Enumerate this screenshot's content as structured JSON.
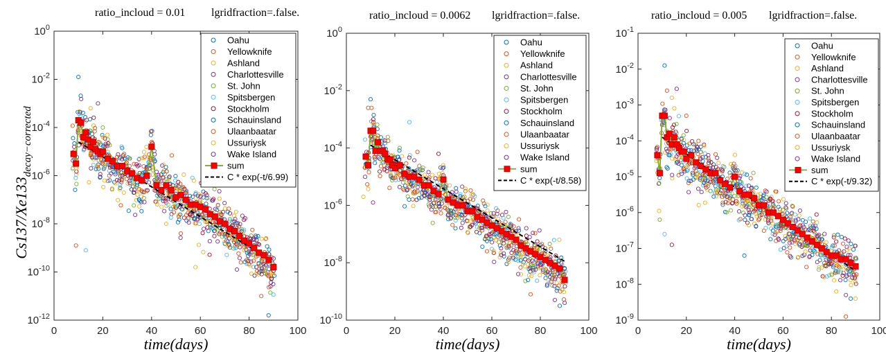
{
  "chart_data": [
    {
      "type": "scatter",
      "title_left": "ratio_incloud = 0.01",
      "title_right": "lgridfraction=.false.",
      "xlabel": "time(days)",
      "ylabel": "Cs137/Xe133",
      "ylabel_sub": "decay−corrected",
      "xlim": [
        0,
        100
      ],
      "xticks": [
        0,
        20,
        40,
        60,
        80,
        100
      ],
      "yscale": "log",
      "ylim_exp": [
        -12,
        0
      ],
      "yticks_exp": [
        -12,
        -10,
        -8,
        -6,
        -4,
        -2,
        0
      ],
      "fit_tau": 6.99,
      "fit_label": "C * exp(-t/6.99)",
      "sum": {
        "x": [
          8,
          9,
          10,
          11,
          12,
          13,
          14,
          15,
          16,
          17,
          18,
          19,
          20,
          22,
          24,
          26,
          28,
          30,
          32,
          34,
          36,
          38,
          40,
          42,
          44,
          46,
          48,
          50,
          52,
          54,
          56,
          58,
          60,
          62,
          64,
          66,
          68,
          70,
          72,
          74,
          76,
          78,
          80,
          82,
          84,
          86,
          88,
          90
        ],
        "logy": [
          -5.1,
          -5.5,
          -3.7,
          -3.8,
          -4.4,
          -4.2,
          -4.5,
          -4.8,
          -4.6,
          -4.9,
          -5.0,
          -5.1,
          -5.0,
          -5.3,
          -5.4,
          -5.6,
          -5.6,
          -5.8,
          -5.9,
          -6.1,
          -6.2,
          -6.0,
          -4.8,
          -6.4,
          -6.6,
          -6.4,
          -6.6,
          -6.9,
          -6.8,
          -7.0,
          -7.2,
          -7.2,
          -7.3,
          -7.4,
          -7.6,
          -7.7,
          -7.9,
          -8.0,
          -8.2,
          -8.3,
          -8.5,
          -8.7,
          -8.8,
          -9.0,
          -9.2,
          -9.3,
          -9.5,
          -9.8
        ]
      },
      "fit_start_logy": -4.6,
      "scatter_spread": 0.9,
      "outliers": [
        [
          10,
          -1.9
        ],
        [
          9,
          -8.9
        ],
        [
          15,
          -3.2
        ],
        [
          18,
          -3.0
        ],
        [
          20,
          -4.0
        ],
        [
          13,
          -9.1
        ],
        [
          28,
          -6.0
        ],
        [
          35,
          -7.0
        ],
        [
          52,
          -8.4
        ],
        [
          58,
          -9.8
        ],
        [
          75,
          -9.9
        ],
        [
          88,
          -11.8
        ],
        [
          85,
          -11.0
        ],
        [
          46,
          -8.0
        ]
      ]
    },
    {
      "type": "scatter",
      "title_left": "ratio_incloud = 0.0062",
      "title_right": "lgridfraction=.false.",
      "xlabel": "time(days)",
      "xlim": [
        0,
        100
      ],
      "xticks": [
        0,
        20,
        40,
        60,
        80,
        100
      ],
      "yscale": "log",
      "ylim_exp": [
        -10,
        0
      ],
      "yticks_exp": [
        -10,
        -8,
        -6,
        -4,
        -2,
        0
      ],
      "fit_tau": 8.58,
      "fit_label": "C * exp(-t/8.58)",
      "sum": {
        "x": [
          8,
          9,
          10,
          11,
          12,
          13,
          14,
          15,
          16,
          17,
          18,
          19,
          20,
          22,
          24,
          26,
          28,
          30,
          32,
          34,
          36,
          38,
          40,
          42,
          44,
          46,
          48,
          50,
          52,
          54,
          56,
          58,
          60,
          62,
          64,
          66,
          68,
          70,
          72,
          74,
          76,
          78,
          80,
          82,
          84,
          86,
          88,
          90
        ],
        "logy": [
          -4.3,
          -4.6,
          -3.4,
          -3.4,
          -4.1,
          -3.8,
          -4.1,
          -4.1,
          -4.2,
          -4.4,
          -4.4,
          -4.6,
          -4.7,
          -4.6,
          -4.9,
          -5.0,
          -5.0,
          -5.1,
          -5.3,
          -5.3,
          -5.5,
          -5.6,
          -5.1,
          -5.8,
          -5.9,
          -6.0,
          -6.0,
          -6.2,
          -6.2,
          -6.4,
          -6.5,
          -6.6,
          -6.7,
          -6.8,
          -6.9,
          -7.0,
          -7.1,
          -7.2,
          -7.4,
          -7.5,
          -7.6,
          -7.7,
          -7.8,
          -7.9,
          -8.0,
          -8.1,
          -8.2,
          -8.6
        ]
      },
      "fit_start_logy": -3.9,
      "scatter_spread": 0.7,
      "outliers": [
        [
          10,
          -2.3
        ],
        [
          9,
          -2.6
        ],
        [
          7,
          -5.7
        ],
        [
          11,
          -5.9
        ],
        [
          22,
          -4.0
        ],
        [
          26,
          -3.1
        ],
        [
          38,
          -4.2
        ],
        [
          45,
          -6.8
        ],
        [
          58,
          -7.6
        ],
        [
          72,
          -8.4
        ],
        [
          86,
          -9.3
        ],
        [
          88,
          -9.5
        ],
        [
          76,
          -9.1
        ]
      ]
    },
    {
      "type": "scatter",
      "title_left": "ratio_incloud = 0.005",
      "title_right": "lgridfraction=.false.",
      "xlabel": "time(days)",
      "xlim": [
        0,
        100
      ],
      "xticks": [
        0,
        20,
        40,
        60,
        80,
        100
      ],
      "yscale": "log",
      "ylim_exp": [
        -9,
        -1
      ],
      "yticks_exp": [
        -9,
        -8,
        -7,
        -6,
        -5,
        -4,
        -3,
        -2,
        -1
      ],
      "fit_tau": 9.32,
      "fit_label": "C * exp(-t/9.32)",
      "sum": {
        "x": [
          8,
          9,
          10,
          11,
          12,
          13,
          14,
          15,
          16,
          17,
          18,
          19,
          20,
          22,
          24,
          26,
          28,
          30,
          32,
          34,
          36,
          38,
          40,
          42,
          44,
          46,
          48,
          50,
          52,
          54,
          56,
          58,
          60,
          62,
          64,
          66,
          68,
          70,
          72,
          74,
          76,
          78,
          80,
          82,
          84,
          86,
          88,
          90
        ],
        "logy": [
          -4.4,
          -4.9,
          -3.3,
          -3.3,
          -3.9,
          -3.8,
          -4.1,
          -3.9,
          -4.1,
          -4.2,
          -4.3,
          -4.3,
          -4.5,
          -4.4,
          -4.6,
          -4.7,
          -4.8,
          -4.9,
          -4.9,
          -5.1,
          -5.2,
          -5.3,
          -5.0,
          -5.4,
          -5.5,
          -5.5,
          -5.6,
          -5.8,
          -5.8,
          -6.0,
          -6.0,
          -6.1,
          -6.2,
          -6.3,
          -6.4,
          -6.5,
          -6.6,
          -6.7,
          -6.8,
          -6.9,
          -7.0,
          -7.1,
          -7.2,
          -7.2,
          -7.3,
          -7.3,
          -7.4,
          -7.5
        ]
      },
      "fit_start_logy": -3.9,
      "scatter_spread": 0.6,
      "outliers": [
        [
          11,
          -1.9
        ],
        [
          12,
          -2.6
        ],
        [
          14,
          -2.8
        ],
        [
          16,
          -2.55
        ],
        [
          9,
          -6.2
        ],
        [
          11,
          -6.6
        ],
        [
          14,
          -6.9
        ],
        [
          44,
          -7.2
        ],
        [
          20,
          -3.3
        ],
        [
          82,
          -8.2
        ],
        [
          86,
          -8.3
        ],
        [
          88,
          -8.4
        ],
        [
          86,
          -8.9
        ],
        [
          90,
          -8.4
        ]
      ]
    }
  ],
  "legend": {
    "stations": [
      "Oahu",
      "Yellowknife",
      "Ashland",
      "Charlottesville",
      "St. John",
      "Spitsbergen",
      "Stockholm",
      "Schauinsland",
      "Ulaanbaatar",
      "Ussuriysk",
      "Wake Island"
    ],
    "station_colors": [
      "#0072BD",
      "#D95319",
      "#EDB120",
      "#7E2F8E",
      "#77AC30",
      "#4DBEEE",
      "#A2142F",
      "#0072BD",
      "#D95319",
      "#EDB120",
      "#7E2F8E"
    ],
    "sum_label": "sum",
    "sum_color": "#FF0000",
    "sum_line_color": "#77AC30"
  }
}
